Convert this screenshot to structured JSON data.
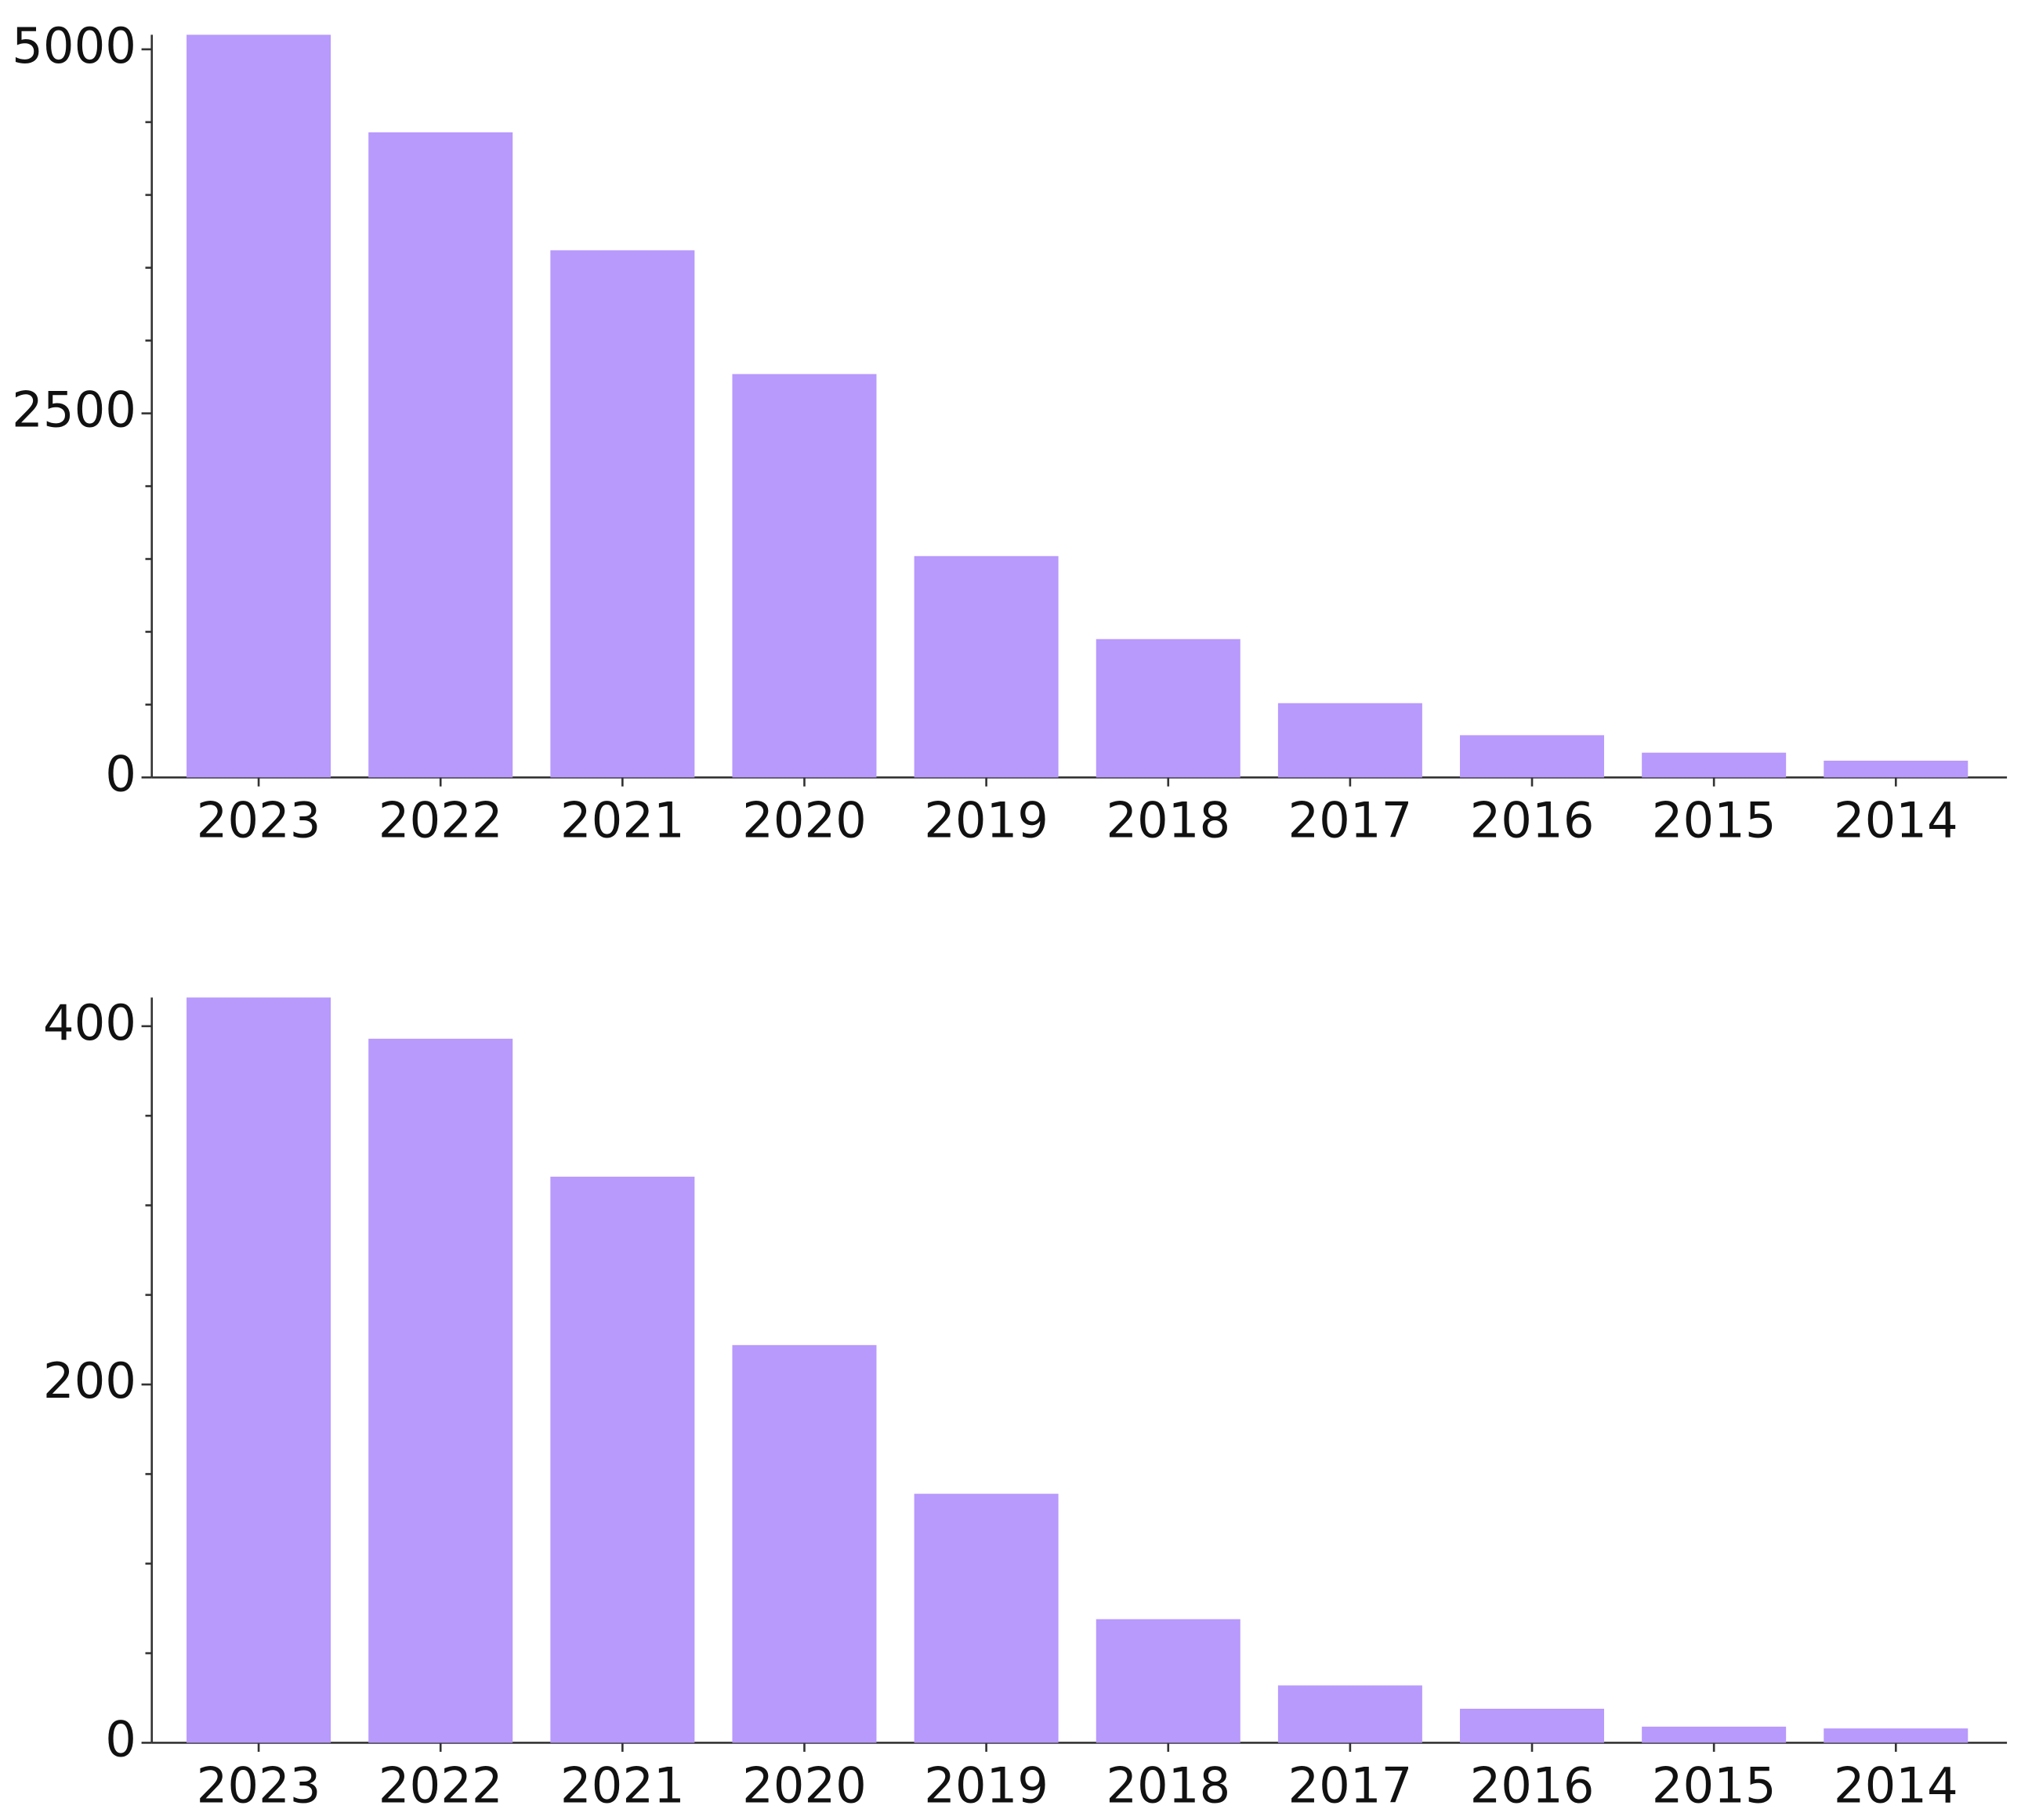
{
  "chart_data": [
    {
      "type": "bar",
      "categories": [
        "2023",
        "2022",
        "2021",
        "2020",
        "2019",
        "2018",
        "2017",
        "2016",
        "2015",
        "2014"
      ],
      "values": [
        5100,
        4430,
        3620,
        2770,
        1520,
        950,
        510,
        290,
        170,
        115
      ],
      "color": "#b899fc",
      "ylim": [
        0,
        5100
      ],
      "yticks": [
        0,
        2500,
        5000
      ],
      "yminorticks": [
        500,
        1000,
        1500,
        2000,
        3000,
        3500,
        4000,
        4500
      ]
    },
    {
      "type": "bar",
      "categories": [
        "2023",
        "2022",
        "2021",
        "2020",
        "2019",
        "2018",
        "2017",
        "2016",
        "2015",
        "2014"
      ],
      "values": [
        416,
        393,
        316,
        222,
        139,
        69,
        32,
        19,
        9,
        8
      ],
      "color": "#b899fc",
      "ylim": [
        0,
        416
      ],
      "yticks": [
        0,
        200,
        400
      ],
      "yminorticks": [
        50,
        100,
        150,
        250,
        300,
        350
      ]
    }
  ]
}
